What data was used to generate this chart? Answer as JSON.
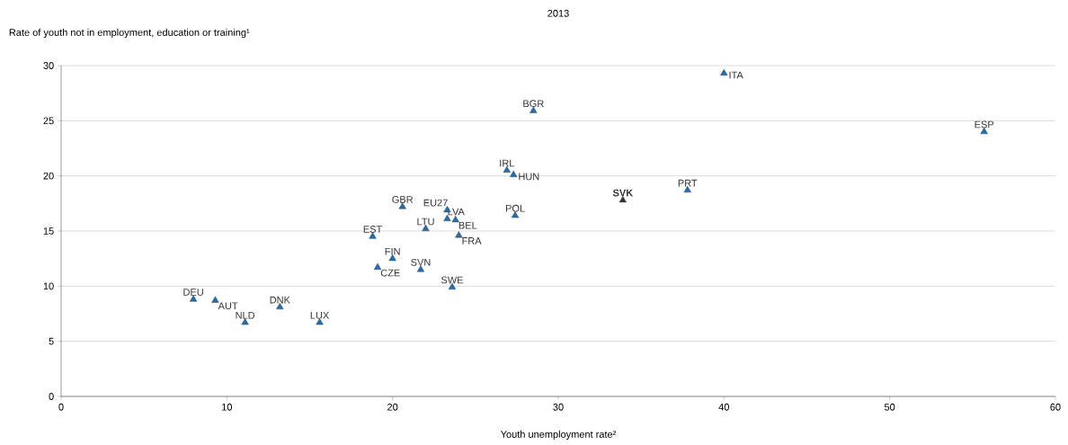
{
  "chart_data": {
    "type": "scatter",
    "title": "2013",
    "xlabel": "Youth unemployment rate²",
    "ylabel": "Rate of youth not in employment, education or training¹",
    "series": [
      {
        "x": [
          7.98,
          9.3,
          11.1,
          13.2,
          15.6,
          19.1,
          20.0,
          21.7,
          23.6,
          18.8,
          22.0,
          24.0,
          28.5,
          26.9,
          27.3,
          33.9,
          37.8,
          20.6,
          23.3,
          23.3,
          23.8,
          27.4,
          40.0,
          55.7
        ],
        "values": [
          8.8,
          8.7,
          6.7,
          8.1,
          6.7,
          11.7,
          12.5,
          11.5,
          9.9,
          14.5,
          15.2,
          14.6,
          25.9,
          20.5,
          20.1,
          17.8,
          18.7,
          17.2,
          16.9,
          16.1,
          16.0,
          16.4,
          29.3,
          24.0
        ],
        "colors": [
          "#1a6eb5",
          "#1a6eb5",
          "#1a6eb5",
          "#1a6eb5",
          "#1a6eb5",
          "#1a6eb5",
          "#1a6eb5",
          "#1a6eb5",
          "#1a6eb5",
          "#1a6eb5",
          "#1a6eb5",
          "#1a6eb5",
          "#1a6eb5",
          "#1a6eb5",
          "#1a6eb5",
          "#333333",
          "#1a6eb5",
          "#1a6eb5",
          "#1a6eb5",
          "#1a6eb5",
          "#1a6eb5",
          "#1a6eb5",
          "#1a6eb5",
          "#1a6eb5"
        ]
      }
    ],
    "annotations": [
      {
        "text": "DEU",
        "x": 7.98,
        "y": 8.8
      },
      {
        "text": "AUT",
        "x": 9.3,
        "y": 8.7
      },
      {
        "text": "NLD",
        "x": 11.1,
        "y": 6.7
      },
      {
        "text": "DNK",
        "x": 13.2,
        "y": 8.1
      },
      {
        "text": "LUX",
        "x": 15.6,
        "y": 6.7
      },
      {
        "text": "CZE",
        "x": 19.1,
        "y": 11.7
      },
      {
        "text": "FIN",
        "x": 20.0,
        "y": 12.5
      },
      {
        "text": "SVN",
        "x": 21.7,
        "y": 11.5
      },
      {
        "text": "SWE",
        "x": 23.6,
        "y": 9.9
      },
      {
        "text": "EST",
        "x": 18.8,
        "y": 14.5
      },
      {
        "text": "LTU",
        "x": 22.0,
        "y": 15.2
      },
      {
        "text": "FRA",
        "x": 24.0,
        "y": 14.6
      },
      {
        "text": "BGR",
        "x": 28.5,
        "y": 25.9
      },
      {
        "text": "IRL",
        "x": 26.9,
        "y": 20.5
      },
      {
        "text": "HUN",
        "x": 27.3,
        "y": 20.1
      },
      {
        "text": "**SVK**",
        "x": 33.9,
        "y": 17.8
      },
      {
        "text": "PRT",
        "x": 37.8,
        "y": 18.7
      },
      {
        "text": "GBR",
        "x": 20.6,
        "y": 17.2
      },
      {
        "text": "EU27",
        "x": 23.3,
        "y": 16.9
      },
      {
        "text": "LVA",
        "x": 23.3,
        "y": 16.1
      },
      {
        "text": "BEL",
        "x": 23.8,
        "y": 16.0
      },
      {
        "text": "POL",
        "x": 27.4,
        "y": 16.4
      },
      {
        "text": "ITA",
        "x": 40.0,
        "y": 29.3
      },
      {
        "text": "ESP",
        "x": 55.7,
        "y": 24.0
      }
    ],
    "xlim": [
      0,
      60
    ],
    "ylim": [
      0,
      30
    ],
    "xticks": [
      0,
      10,
      20,
      30,
      40,
      50,
      60
    ],
    "yticks": [
      0,
      5,
      10,
      15,
      20,
      25,
      30
    ],
    "grid": "y",
    "marker": "triangle"
  }
}
